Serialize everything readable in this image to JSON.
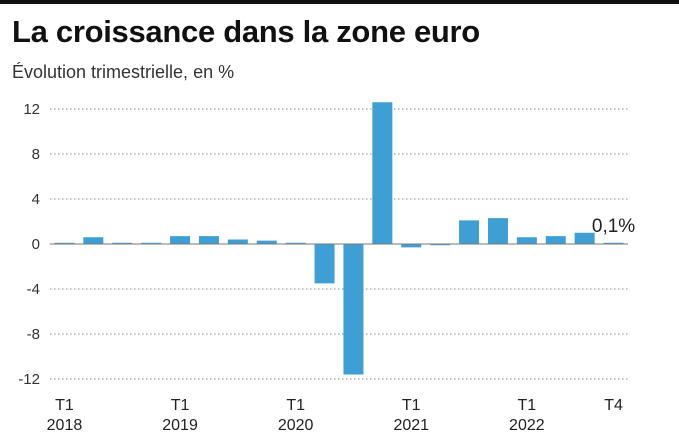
{
  "title": "La croissance dans la zone euro",
  "subtitle": "Évolution trimestrielle, en %",
  "colors": {
    "bar": "#3d9fd3",
    "grid": "#8a8a8a",
    "baseline": "#7a7a7a"
  },
  "chart_data": {
    "type": "bar",
    "title": "La croissance dans la zone euro",
    "subtitle": "Évolution trimestrielle, en %",
    "ylim": [
      -12,
      12
    ],
    "yticks": [
      12,
      8,
      4,
      0,
      -4,
      -8,
      -12
    ],
    "grid": true,
    "x": [
      "T1 2018",
      "T2 2018",
      "T3 2018",
      "T4 2018",
      "T1 2019",
      "T2 2019",
      "T3 2019",
      "T4 2019",
      "T1 2020",
      "T2 2020",
      "T3 2020",
      "T4 2020",
      "T1 2021",
      "T2 2021",
      "T3 2021",
      "T4 2021",
      "T1 2022",
      "T2 2022",
      "T3 2022",
      "T4 2022"
    ],
    "values": [
      0.1,
      0.6,
      0.1,
      0.0,
      0.7,
      0.7,
      0.4,
      0.3,
      0.1,
      -3.5,
      -11.6,
      12.6,
      -0.3,
      -0.1,
      2.1,
      2.3,
      0.6,
      0.7,
      1.0,
      0.1
    ],
    "x_tick_labels": [
      {
        "quarter": "T1",
        "year": "2018",
        "index": 0
      },
      {
        "quarter": "T1",
        "year": "2019",
        "index": 4
      },
      {
        "quarter": "T1",
        "year": "2020",
        "index": 8
      },
      {
        "quarter": "T1",
        "year": "2021",
        "index": 12
      },
      {
        "quarter": "T1",
        "year": "2022",
        "index": 16
      },
      {
        "quarter": "T4",
        "year": "",
        "index": 19
      }
    ],
    "annotation": {
      "text": "0,1%",
      "index": 19
    }
  }
}
